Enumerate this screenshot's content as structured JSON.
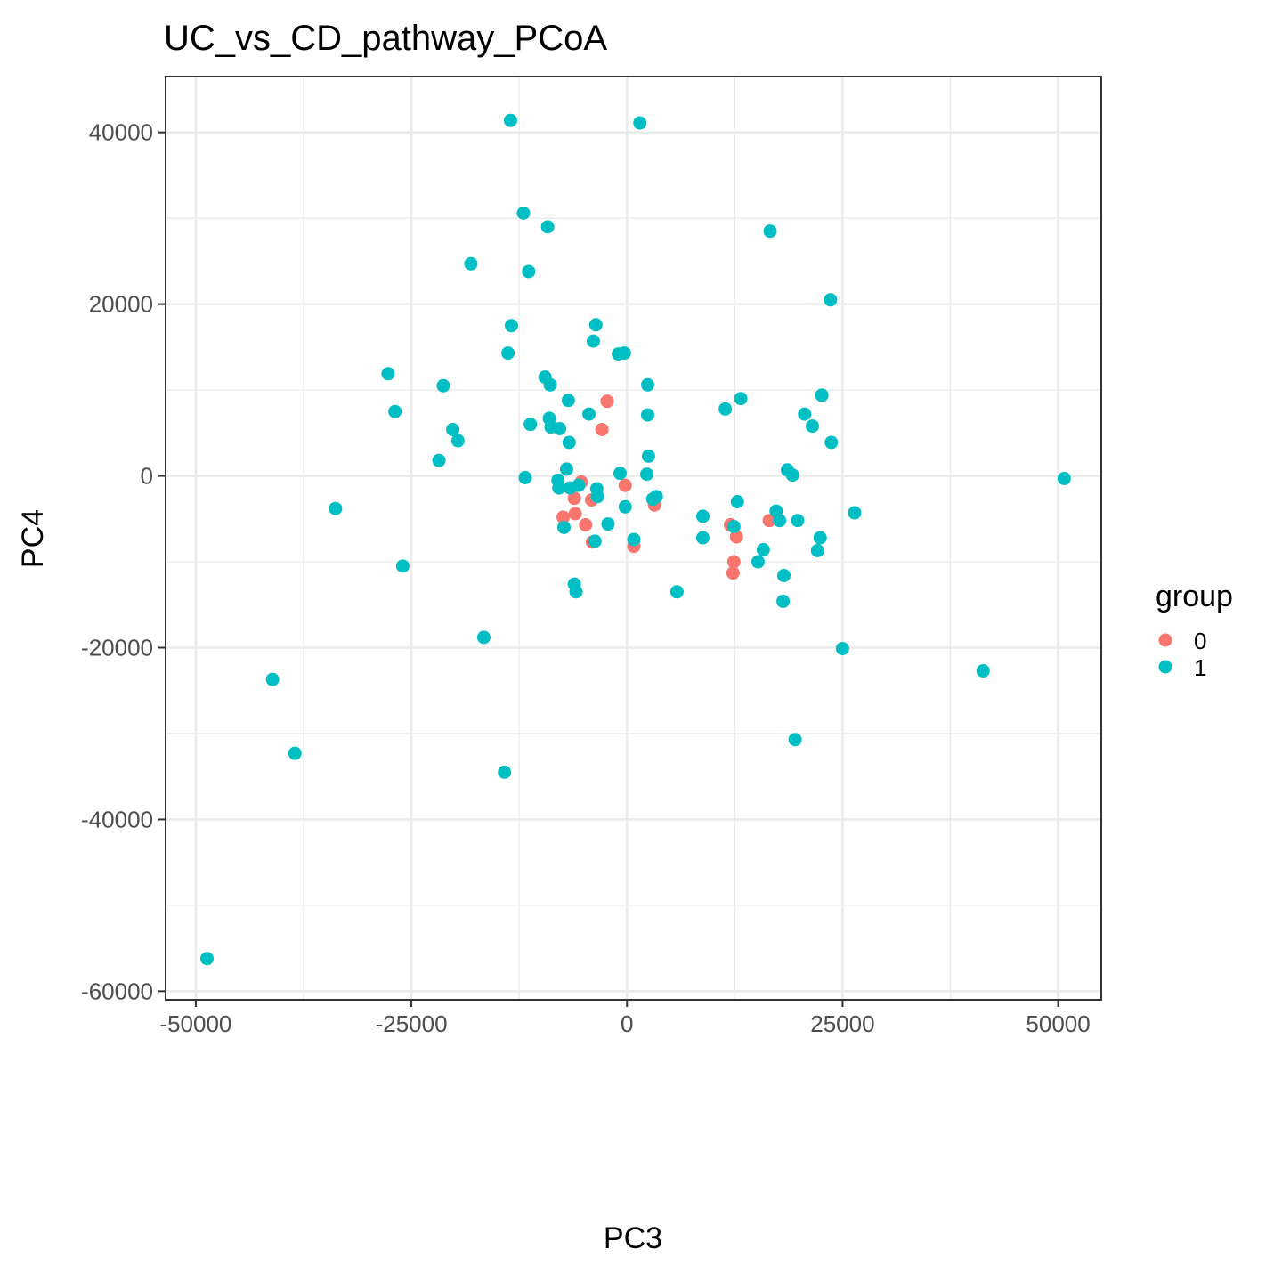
{
  "chart_data": {
    "type": "scatter",
    "title": "UC_vs_CD_pathway_PCoA",
    "xlabel": "PC3",
    "ylabel": "PC4",
    "xlim": [
      -53500,
      55000
    ],
    "ylim": [
      -61000,
      46500
    ],
    "x_ticks": [
      -50000,
      -25000,
      0,
      25000,
      50000
    ],
    "x_tick_labels": [
      "-50000",
      "-25000",
      "0",
      "25000",
      "50000"
    ],
    "y_ticks": [
      -60000,
      -40000,
      -20000,
      0,
      20000,
      40000
    ],
    "y_tick_labels": [
      "-60000",
      "-40000",
      "-20000",
      "0",
      "20000",
      "40000"
    ],
    "grid": true,
    "legend": {
      "title": "group",
      "position": "right"
    },
    "series": [
      {
        "name": "0",
        "color": "#F8766D",
        "points": [
          [
            -2300,
            8700
          ],
          [
            -2900,
            5400
          ],
          [
            -5300,
            -700
          ],
          [
            -6100,
            -2600
          ],
          [
            -7400,
            -4800
          ],
          [
            -6000,
            -4400
          ],
          [
            -4100,
            -2800
          ],
          [
            -4800,
            -5700
          ],
          [
            -4000,
            -7700
          ],
          [
            -200,
            -1100
          ],
          [
            800,
            -8200
          ],
          [
            3200,
            -3400
          ],
          [
            12000,
            -5700
          ],
          [
            16500,
            -5200
          ],
          [
            12700,
            -7100
          ],
          [
            12400,
            -10000
          ],
          [
            12300,
            -11300
          ]
        ]
      },
      {
        "name": "1",
        "color": "#00BFC4",
        "points": [
          [
            -13500,
            41400
          ],
          [
            1500,
            41100
          ],
          [
            -12000,
            30600
          ],
          [
            -9200,
            29000
          ],
          [
            -18100,
            24700
          ],
          [
            -11400,
            23800
          ],
          [
            16600,
            28500
          ],
          [
            23600,
            20500
          ],
          [
            -13400,
            17500
          ],
          [
            -3600,
            17600
          ],
          [
            -13800,
            14300
          ],
          [
            -3900,
            15700
          ],
          [
            -1000,
            14200
          ],
          [
            -300,
            14300
          ],
          [
            -27700,
            11900
          ],
          [
            -21300,
            10500
          ],
          [
            -9500,
            11500
          ],
          [
            -8900,
            10600
          ],
          [
            2400,
            10600
          ],
          [
            -26900,
            7500
          ],
          [
            -6800,
            8800
          ],
          [
            -4400,
            7200
          ],
          [
            11400,
            7800
          ],
          [
            13200,
            9000
          ],
          [
            22600,
            9400
          ],
          [
            2400,
            7100
          ],
          [
            20600,
            7200
          ],
          [
            21500,
            5800
          ],
          [
            -11200,
            6000
          ],
          [
            -9000,
            6700
          ],
          [
            -8800,
            5700
          ],
          [
            -7800,
            5500
          ],
          [
            -20200,
            5400
          ],
          [
            -19600,
            4100
          ],
          [
            -6700,
            3900
          ],
          [
            23700,
            3900
          ],
          [
            -21800,
            1800
          ],
          [
            2500,
            2300
          ],
          [
            -7000,
            800
          ],
          [
            -800,
            300
          ],
          [
            2300,
            200
          ],
          [
            18600,
            700
          ],
          [
            19200,
            100
          ],
          [
            50700,
            -300
          ],
          [
            -11800,
            -200
          ],
          [
            -8000,
            -500
          ],
          [
            -7900,
            -1400
          ],
          [
            -6600,
            -1400
          ],
          [
            -5600,
            -1100
          ],
          [
            -3500,
            -1500
          ],
          [
            -3400,
            -2400
          ],
          [
            3400,
            -2400
          ],
          [
            3000,
            -2700
          ],
          [
            -33800,
            -3800
          ],
          [
            -200,
            -3600
          ],
          [
            12800,
            -3000
          ],
          [
            17300,
            -4100
          ],
          [
            26400,
            -4300
          ],
          [
            8800,
            -4700
          ],
          [
            17700,
            -5200
          ],
          [
            19800,
            -5200
          ],
          [
            12400,
            -5900
          ],
          [
            -2200,
            -5600
          ],
          [
            -7300,
            -6000
          ],
          [
            800,
            -7400
          ],
          [
            8800,
            -7200
          ],
          [
            22400,
            -7200
          ],
          [
            -3700,
            -7600
          ],
          [
            15800,
            -8600
          ],
          [
            22100,
            -8700
          ],
          [
            -26000,
            -10500
          ],
          [
            15200,
            -10000
          ],
          [
            18200,
            -11600
          ],
          [
            -6100,
            -12600
          ],
          [
            -5900,
            -13500
          ],
          [
            5800,
            -13500
          ],
          [
            18100,
            -14600
          ],
          [
            -16600,
            -18800
          ],
          [
            25000,
            -20100
          ],
          [
            41300,
            -22700
          ],
          [
            -41100,
            -23700
          ],
          [
            19500,
            -30700
          ],
          [
            -38500,
            -32300
          ],
          [
            -14200,
            -34500
          ],
          [
            -48700,
            -56200
          ]
        ]
      }
    ]
  }
}
